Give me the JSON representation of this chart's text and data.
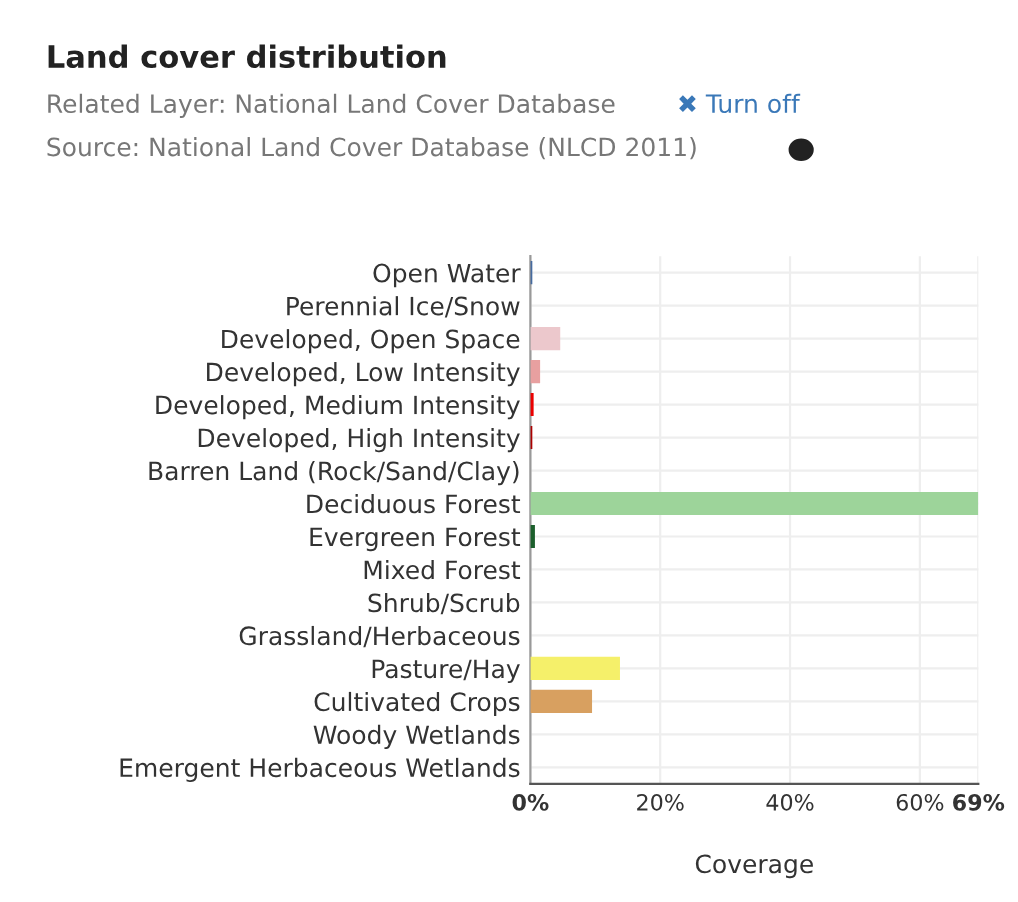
{
  "chart_data": {
    "type": "bar",
    "orientation": "horizontal",
    "title": "Land cover distribution",
    "annotations": [
      "Related Layer: National Land Cover Database",
      "✖ Turn off",
      "Source: National Land Cover Database (NLCD 2011)"
    ],
    "categories": [
      "Open Water",
      "Perennial Ice/Snow",
      "Developed, Open Space",
      "Developed, Low Intensity",
      "Developed, Medium Intensity",
      "Developed, High Intensity",
      "Barren Land (Rock/Sand/Clay)",
      "Deciduous Forest",
      "Evergreen Forest",
      "Mixed Forest",
      "Shrub/Scrub",
      "Grassland/Herbaceous",
      "Pasture/Hay",
      "Cultivated Crops",
      "Woody Wetlands",
      "Emergent Herbaceous Wetlands"
    ],
    "values": [
      0.3,
      0,
      4.6,
      1.5,
      0.5,
      0.3,
      null,
      69,
      0.7,
      null,
      null,
      null,
      13.8,
      9.5,
      null,
      null
    ],
    "colors": [
      "#466b9f",
      "#d1def8",
      "#ecc8cc",
      "#e8a0a0",
      "#eb0000",
      "#ab0000",
      "#b3ac9f",
      "#9dd49a",
      "#1c5f2c",
      "#b5c58f",
      "#ccb879",
      "#dfdfc2",
      "#f5f06a",
      "#d8a060",
      "#b8d9eb",
      "#6c9fb8"
    ],
    "xlabel": "Coverage",
    "xlim": [
      0,
      69
    ],
    "xticks": [
      {
        "value": 0,
        "label": "0%"
      },
      {
        "value": 20,
        "label": "20%"
      },
      {
        "value": 40,
        "label": "40%"
      },
      {
        "value": 60,
        "label": "60%"
      },
      {
        "value": 69,
        "label": "69%"
      }
    ],
    "grid": true
  }
}
